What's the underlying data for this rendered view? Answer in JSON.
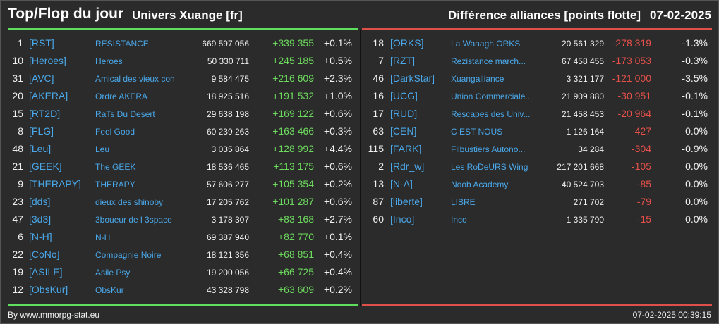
{
  "header": {
    "title": "Top/Flop du jour",
    "universe": "Univers Xuange [fr]",
    "subtitle": "Différence alliances [points flotte]",
    "date": "07-02-2025"
  },
  "colors": {
    "positive": "#6ddc5e",
    "negative": "#e8504a",
    "tag": "#4aa8ea",
    "background": "#2b2b2b"
  },
  "top": [
    {
      "rank": "1",
      "tag": "[RST]",
      "name": "RESISTANCE",
      "points": "669 597 056",
      "diff": "+339 355",
      "pct": "+0.1%"
    },
    {
      "rank": "10",
      "tag": "[Heroes]",
      "name": "Heroes",
      "points": "50 330 711",
      "diff": "+245 185",
      "pct": "+0.5%"
    },
    {
      "rank": "31",
      "tag": "[AVC]",
      "name": "Amical des vieux con",
      "points": "9 584 475",
      "diff": "+216 609",
      "pct": "+2.3%"
    },
    {
      "rank": "20",
      "tag": "[AKERA]",
      "name": "Ordre AKERA",
      "points": "18 925 516",
      "diff": "+191 532",
      "pct": "+1.0%"
    },
    {
      "rank": "15",
      "tag": "[RT2D]",
      "name": "RaTs Du Desert",
      "points": "29 638 198",
      "diff": "+169 122",
      "pct": "+0.6%"
    },
    {
      "rank": "8",
      "tag": "[FLG]",
      "name": "Feel Good",
      "points": "60 239 263",
      "diff": "+163 466",
      "pct": "+0.3%"
    },
    {
      "rank": "48",
      "tag": "[Leu]",
      "name": "Leu",
      "points": "3 035 864",
      "diff": "+128 992",
      "pct": "+4.4%"
    },
    {
      "rank": "21",
      "tag": "[GEEK]",
      "name": "The GEEK",
      "points": "18 536 465",
      "diff": "+113 175",
      "pct": "+0.6%"
    },
    {
      "rank": "9",
      "tag": "[THERAPY]",
      "name": "THERAPY",
      "points": "57 606 277",
      "diff": "+105 354",
      "pct": "+0.2%"
    },
    {
      "rank": "23",
      "tag": "[dds]",
      "name": "dieux des shinoby",
      "points": "17 205 762",
      "diff": "+101 287",
      "pct": "+0.6%"
    },
    {
      "rank": "47",
      "tag": "[3d3]",
      "name": "3boueur de l 3space",
      "points": "3 178 307",
      "diff": "+83 168",
      "pct": "+2.7%"
    },
    {
      "rank": "6",
      "tag": "[N-H]",
      "name": "N-H",
      "points": "69 387 940",
      "diff": "+82 770",
      "pct": "+0.1%"
    },
    {
      "rank": "22",
      "tag": "[CoNo]",
      "name": "Compagnie Noire",
      "points": "18 121 356",
      "diff": "+68 851",
      "pct": "+0.4%"
    },
    {
      "rank": "19",
      "tag": "[ASILE]",
      "name": "Asile Psy",
      "points": "19 200 056",
      "diff": "+66 725",
      "pct": "+0.4%"
    },
    {
      "rank": "12",
      "tag": "[ObsKur]",
      "name": "ObsKur",
      "points": "43 328 798",
      "diff": "+63 609",
      "pct": "+0.2%"
    }
  ],
  "flop": [
    {
      "rank": "18",
      "tag": "[ORKS]",
      "name": "La Waaagh ORKS",
      "points": "20 561 329",
      "diff": "-278 319",
      "pct": "-1.3%"
    },
    {
      "rank": "7",
      "tag": "[RZT]",
      "name": "Rezistance march...",
      "points": "67 458 455",
      "diff": "-173 053",
      "pct": "-0.3%"
    },
    {
      "rank": "46",
      "tag": "[DarkStar]",
      "name": "Xuangalliance",
      "points": "3 321 177",
      "diff": "-121 000",
      "pct": "-3.5%"
    },
    {
      "rank": "16",
      "tag": "[UCG]",
      "name": "Union Commerciale...",
      "points": "21 909 880",
      "diff": "-30 951",
      "pct": "-0.1%"
    },
    {
      "rank": "17",
      "tag": "[RUD]",
      "name": "Rescapes des Univ...",
      "points": "21 458 453",
      "diff": "-20 964",
      "pct": "-0.1%"
    },
    {
      "rank": "63",
      "tag": "[CEN]",
      "name": "C EST NOUS",
      "points": "1 126 164",
      "diff": "-427",
      "pct": "0.0%"
    },
    {
      "rank": "115",
      "tag": "[FARK]",
      "name": "Flibustiers Autono...",
      "points": "34 284",
      "diff": "-304",
      "pct": "-0.9%"
    },
    {
      "rank": "2",
      "tag": "[Rdr_w]",
      "name": "Les RoDeURS Wing",
      "points": "217 201 668",
      "diff": "-105",
      "pct": "0.0%"
    },
    {
      "rank": "13",
      "tag": "[N-A]",
      "name": "Noob Academy",
      "points": "40 524 703",
      "diff": "-85",
      "pct": "0.0%"
    },
    {
      "rank": "87",
      "tag": "[liberte]",
      "name": "LIBRE",
      "points": "271 702",
      "diff": "-79",
      "pct": "0.0%"
    },
    {
      "rank": "60",
      "tag": "[Inco]",
      "name": "Inco",
      "points": "1 335 790",
      "diff": "-15",
      "pct": "0.0%"
    }
  ],
  "footer": {
    "credit": "By www.mmorpg-stat.eu",
    "timestamp": "07-02-2025 00:39:15"
  }
}
